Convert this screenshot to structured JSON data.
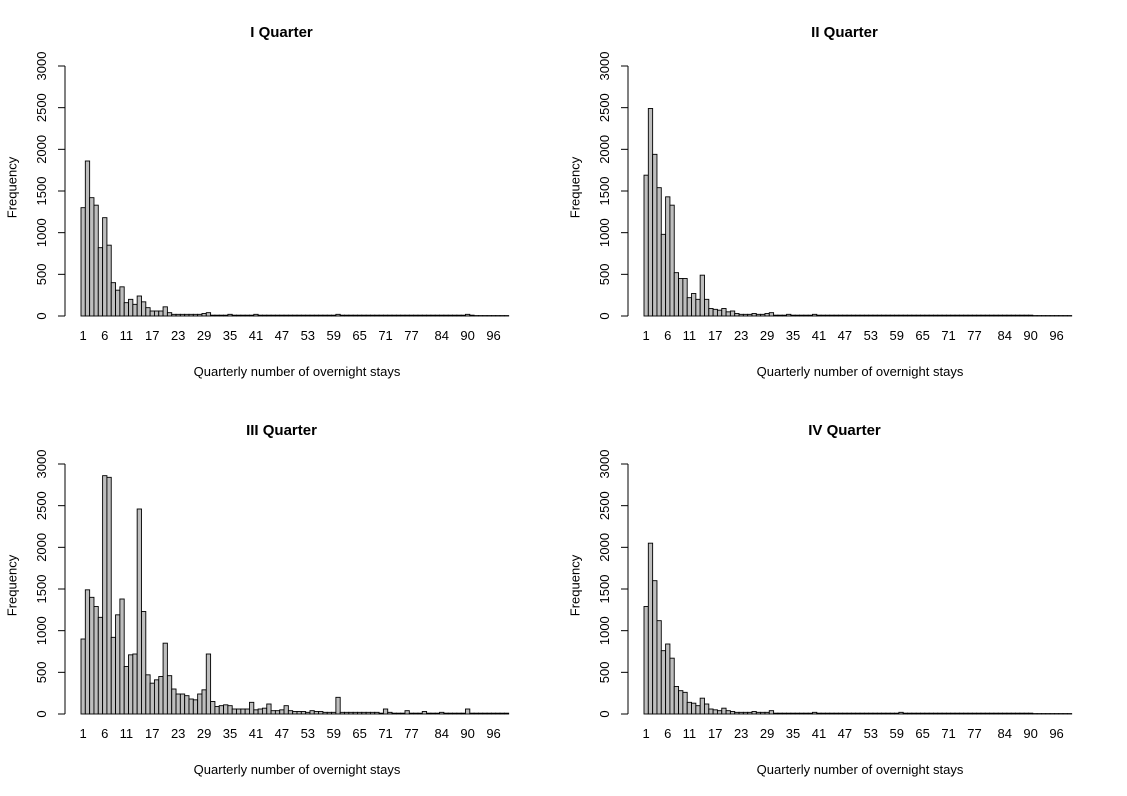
{
  "chart_data": [
    {
      "type": "bar",
      "title": "I Quarter",
      "xlabel": "Quarterly number of overnight stays",
      "ylabel": "Frequency",
      "ylim": [
        0,
        3000
      ],
      "yticks": [
        "0",
        "500",
        "1000",
        "1500",
        "2000",
        "2500",
        "3000"
      ],
      "xticks": [
        "1",
        "6",
        "11",
        "17",
        "23",
        "29",
        "35",
        "41",
        "47",
        "53",
        "59",
        "65",
        "71",
        "77",
        "84",
        "90",
        "96"
      ],
      "values": [
        1300,
        1860,
        1420,
        1330,
        820,
        1180,
        850,
        400,
        310,
        350,
        160,
        200,
        140,
        240,
        170,
        100,
        60,
        60,
        60,
        110,
        40,
        20,
        20,
        20,
        20,
        20,
        20,
        20,
        30,
        40,
        10,
        10,
        10,
        10,
        20,
        10,
        10,
        10,
        10,
        10,
        20,
        10,
        10,
        10,
        10,
        10,
        10,
        10,
        10,
        10,
        10,
        10,
        10,
        10,
        10,
        10,
        10,
        10,
        10,
        20,
        10,
        10,
        10,
        10,
        10,
        10,
        10,
        10,
        10,
        10,
        10,
        10,
        10,
        10,
        10,
        10,
        10,
        10,
        10,
        10,
        10,
        10,
        10,
        10,
        10,
        10,
        10,
        10,
        10,
        20,
        10,
        5,
        5,
        5,
        5,
        5,
        5,
        5,
        5
      ]
    },
    {
      "type": "bar",
      "title": "II Quarter",
      "xlabel": "Quarterly number of overnight stays",
      "ylabel": "Frequency",
      "ylim": [
        0,
        3000
      ],
      "yticks": [
        "0",
        "500",
        "1000",
        "1500",
        "2000",
        "2500",
        "3000"
      ],
      "xticks": [
        "1",
        "6",
        "11",
        "17",
        "23",
        "29",
        "35",
        "41",
        "47",
        "53",
        "59",
        "65",
        "71",
        "77",
        "84",
        "90",
        "96"
      ],
      "values": [
        1690,
        2490,
        1940,
        1540,
        980,
        1430,
        1330,
        520,
        450,
        450,
        220,
        270,
        200,
        490,
        200,
        90,
        80,
        70,
        90,
        50,
        60,
        30,
        20,
        20,
        20,
        30,
        20,
        20,
        30,
        40,
        10,
        10,
        10,
        20,
        10,
        10,
        10,
        10,
        10,
        20,
        10,
        10,
        10,
        10,
        10,
        10,
        10,
        10,
        10,
        10,
        10,
        10,
        10,
        10,
        10,
        10,
        10,
        10,
        10,
        10,
        10,
        10,
        10,
        10,
        10,
        10,
        10,
        10,
        10,
        10,
        10,
        10,
        10,
        10,
        10,
        10,
        10,
        10,
        10,
        10,
        10,
        10,
        10,
        10,
        10,
        10,
        10,
        10,
        10,
        10,
        5,
        5,
        5,
        5,
        5,
        5,
        5,
        5,
        5
      ]
    },
    {
      "type": "bar",
      "title": "III Quarter",
      "xlabel": "Quarterly number of overnight stays",
      "ylabel": "Frequency",
      "ylim": [
        0,
        3000
      ],
      "yticks": [
        "0",
        "500",
        "1000",
        "1500",
        "2000",
        "2500",
        "3000"
      ],
      "xticks": [
        "1",
        "6",
        "11",
        "17",
        "23",
        "29",
        "35",
        "41",
        "47",
        "53",
        "59",
        "65",
        "71",
        "77",
        "84",
        "90",
        "96"
      ],
      "values": [
        900,
        1490,
        1400,
        1290,
        1160,
        2860,
        2840,
        920,
        1190,
        1380,
        570,
        710,
        720,
        2460,
        1230,
        470,
        370,
        410,
        450,
        850,
        460,
        300,
        240,
        240,
        220,
        180,
        170,
        240,
        290,
        720,
        150,
        90,
        100,
        110,
        100,
        60,
        60,
        60,
        60,
        140,
        50,
        60,
        70,
        120,
        40,
        40,
        50,
        100,
        40,
        30,
        30,
        30,
        20,
        40,
        30,
        30,
        20,
        20,
        20,
        200,
        20,
        20,
        20,
        20,
        20,
        20,
        20,
        20,
        20,
        10,
        60,
        20,
        10,
        10,
        10,
        40,
        10,
        10,
        10,
        30,
        10,
        10,
        10,
        20,
        10,
        10,
        10,
        10,
        10,
        60,
        10,
        10,
        10,
        10,
        10,
        10,
        10,
        10,
        10
      ]
    },
    {
      "type": "bar",
      "title": "IV Quarter",
      "xlabel": "Quarterly number of overnight stays",
      "ylabel": "Frequency",
      "ylim": [
        0,
        3000
      ],
      "yticks": [
        "0",
        "500",
        "1000",
        "1500",
        "2000",
        "2500",
        "3000"
      ],
      "xticks": [
        "1",
        "6",
        "11",
        "17",
        "23",
        "29",
        "35",
        "41",
        "47",
        "53",
        "59",
        "65",
        "71",
        "77",
        "84",
        "90",
        "96"
      ],
      "values": [
        1290,
        2050,
        1600,
        1120,
        760,
        840,
        670,
        330,
        280,
        260,
        140,
        130,
        100,
        190,
        120,
        60,
        50,
        40,
        70,
        40,
        30,
        20,
        20,
        20,
        20,
        30,
        20,
        20,
        20,
        40,
        10,
        10,
        10,
        10,
        10,
        10,
        10,
        10,
        10,
        20,
        10,
        10,
        10,
        10,
        10,
        10,
        10,
        10,
        10,
        10,
        10,
        10,
        10,
        10,
        10,
        10,
        10,
        10,
        10,
        20,
        10,
        10,
        10,
        10,
        10,
        10,
        10,
        10,
        10,
        10,
        10,
        10,
        10,
        10,
        10,
        10,
        10,
        10,
        10,
        10,
        10,
        10,
        10,
        10,
        10,
        10,
        10,
        10,
        10,
        10,
        5,
        5,
        5,
        5,
        5,
        5,
        5,
        5,
        5
      ]
    }
  ]
}
